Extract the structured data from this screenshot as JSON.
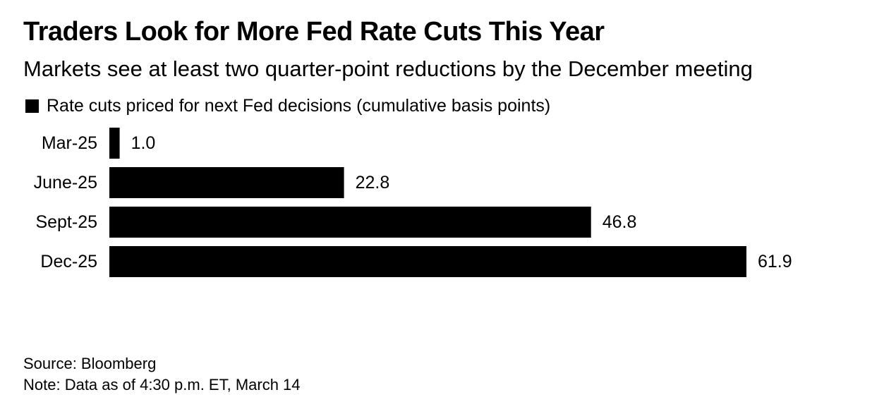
{
  "title": "Traders Look for More Fed Rate Cuts This Year",
  "subtitle": "Markets see at least two quarter-point reductions by the December meeting",
  "colors": {
    "bar": "#000000",
    "text": "#000000",
    "background": "#ffffff"
  },
  "chart_data": {
    "type": "bar",
    "orientation": "horizontal",
    "categories": [
      "Mar-25",
      "June-25",
      "Sept-25",
      "Dec-25"
    ],
    "series": [
      {
        "name": "Rate cuts priced for next Fed decisions (cumulative basis points)",
        "values": [
          1.0,
          22.8,
          46.8,
          61.9
        ]
      }
    ],
    "data_labels": [
      "1.0",
      "22.8",
      "46.8",
      "61.9"
    ],
    "xlim": [
      0,
      61.9
    ],
    "grid": false,
    "legend_position": "top-left"
  },
  "footer": {
    "source": "Source: Bloomberg",
    "note": "Note: Data as of 4:30 p.m. ET, March 14"
  }
}
